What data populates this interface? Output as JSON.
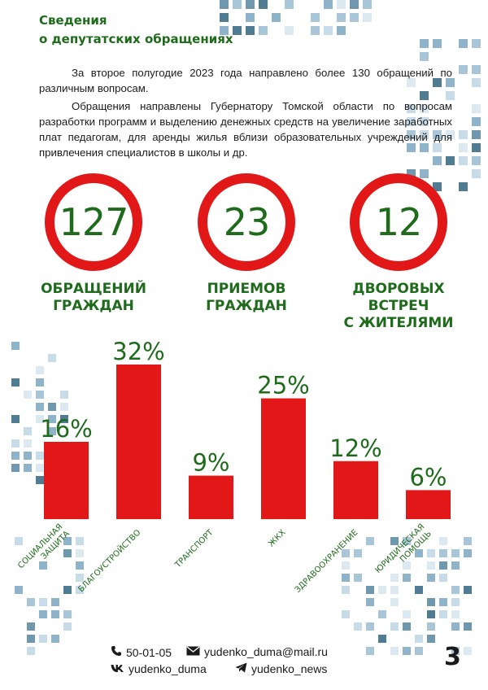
{
  "header": {
    "title_line1": "Сведения",
    "title_line2": "о депутатских обращениях"
  },
  "intro": {
    "paragraph1": "За второе полугодие 2023 года направлено более 130 обращений по различным вопросам.",
    "paragraph2": "Обращения направлены Губернатору Томской области по вопросам разработки программ и выделению денежных средств на увеличение заработных плат педагогам, для аренды жилья вблизи образовательных учреждений для привлечения специалистов в школы и др."
  },
  "stats": [
    {
      "value": "127",
      "label_line1": "ОБРАЩЕНИЙ",
      "label_line2": "ГРАЖДАН"
    },
    {
      "value": "23",
      "label_line1": "ПРИЕМОВ",
      "label_line2": "ГРАЖДАН"
    },
    {
      "value": "12",
      "label_line1": "ДВОРОВЫХ ВСТРЕЧ",
      "label_line2": "С ЖИТЕЛЯМИ"
    }
  ],
  "chart_data": {
    "type": "bar",
    "categories": [
      [
        "СОЦИАЛЬНАЯ",
        "ЗАЩИТА"
      ],
      [
        "БЛАГОУСТРОЙСТВО"
      ],
      [
        "ТРАНСПОРТ"
      ],
      [
        "ЖКХ"
      ],
      [
        "ЗДРАВООХРАНЕНИЕ"
      ],
      [
        "ЮРИДИЧЕСКАЯ",
        "ПОМОЩЬ"
      ]
    ],
    "values": [
      16,
      32,
      9,
      25,
      12,
      6
    ],
    "value_labels": [
      "16%",
      "32%",
      "9%",
      "25%",
      "12%",
      "6%"
    ],
    "ylim": [
      0,
      32
    ],
    "bar_color": "#e21717",
    "label_color": "#1f6b1c"
  },
  "footer": {
    "phone": "50-01-05",
    "email": "yudenko_duma@mail.ru",
    "vk": "yudenko_duma",
    "telegram": "yudenko_news"
  },
  "page_number": "3",
  "colors": {
    "accent_red": "#e21717",
    "accent_green": "#1f6b1c",
    "deco_blue": "#8fb3c9"
  }
}
